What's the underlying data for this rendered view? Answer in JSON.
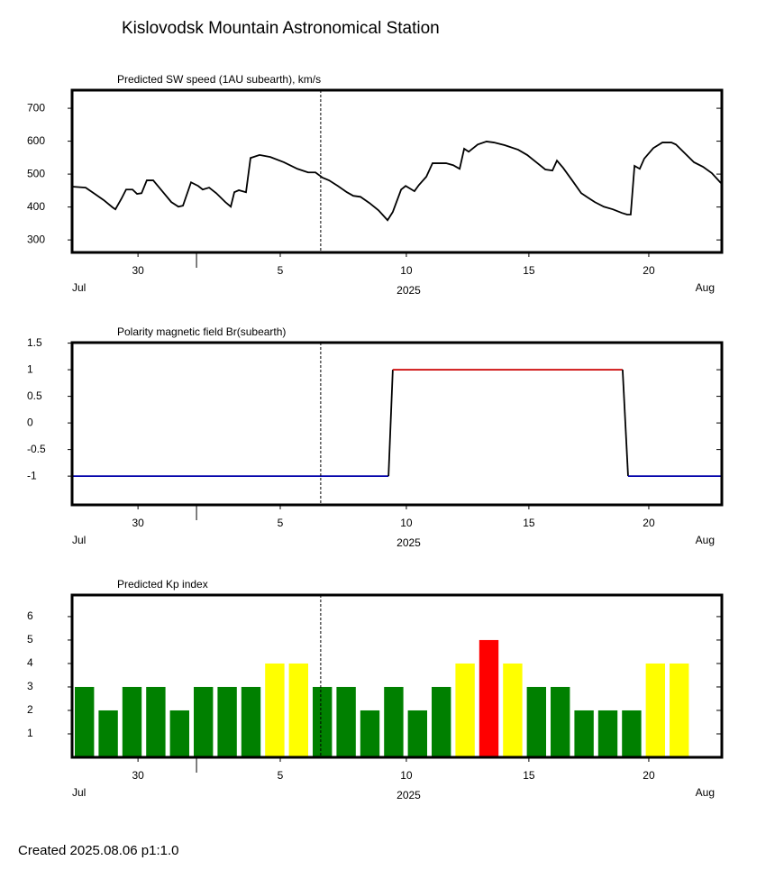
{
  "title": "Kislovodsk Mountain Astronomical Station",
  "footer": "Created  2025.08.06    p1:1.0",
  "chart_data": [
    {
      "type": "line",
      "title": "Predicted SW speed (1AU subearth), km/s",
      "x": [
        0,
        0.57,
        0.95,
        1.33,
        1.7,
        1.82,
        2.08,
        2.27,
        2.54,
        2.73,
        2.92,
        3.14,
        3.41,
        3.79,
        4.17,
        4.47,
        4.66,
        5.0,
        5.3,
        5.49,
        5.76,
        6.06,
        6.44,
        6.67,
        6.82,
        7.01,
        7.31,
        7.5,
        7.88,
        8.33,
        8.9,
        9.47,
        9.92,
        10.23,
        10.53,
        10.8,
        11.17,
        11.55,
        11.82,
        12.12,
        12.5,
        12.88,
        13.26,
        13.48,
        13.83,
        14.02,
        14.39,
        14.58,
        14.89,
        15.15,
        15.72,
        16.02,
        16.29,
        16.48,
        16.67,
        17.05,
        17.42,
        17.73,
        18.18,
        18.75,
        19.13,
        19.51,
        19.89,
        20.19,
        20.38,
        20.64,
        21.02,
        21.4,
        21.67,
        21.97,
        22.35,
        22.73,
        23.11,
        23.33,
        23.48,
        23.64,
        23.86,
        24.05,
        24.43,
        24.81,
        25.19,
        25.38,
        25.76,
        26.14,
        26.52,
        26.89,
        27.27
      ],
      "values": [
        462,
        459,
        440,
        421,
        399,
        393,
        426,
        453,
        453,
        440,
        442,
        481,
        481,
        448,
        415,
        401,
        404,
        475,
        464,
        453,
        459,
        442,
        415,
        401,
        445,
        451,
        445,
        549,
        558,
        552,
        536,
        516,
        505,
        505,
        489,
        481,
        464,
        445,
        434,
        431,
        412,
        390,
        360,
        385,
        453,
        464,
        448,
        467,
        492,
        533,
        533,
        527,
        516,
        577,
        568,
        590,
        599,
        596,
        588,
        574,
        558,
        536,
        514,
        511,
        541,
        519,
        481,
        442,
        429,
        415,
        401,
        393,
        382,
        377,
        377,
        525,
        516,
        547,
        579,
        596,
        596,
        590,
        563,
        536,
        522,
        503,
        473
      ],
      "color": "#000000",
      "xlim": [
        0,
        27.31
      ],
      "ylim": [
        262,
        755
      ],
      "yticks": [
        300,
        400,
        500,
        600,
        700
      ],
      "xticks": [
        {
          "value": 2.77,
          "label": "30"
        },
        {
          "value": 8.75,
          "label": "5"
        },
        {
          "value": 14.05,
          "label": "10"
        },
        {
          "value": 19.2,
          "label": "15"
        },
        {
          "value": 24.24,
          "label": "20"
        }
      ],
      "month_boundary": 5.23,
      "marker_x": 10.45,
      "x_start_label": "Jul",
      "x_center_label": "2025",
      "x_end_label": "Aug"
    },
    {
      "type": "polarity",
      "title": "Polarity magnetic field  Br(subearth)",
      "x": [
        0,
        13.3,
        13.48,
        23.14,
        23.37,
        27.31
      ],
      "values": [
        -1,
        -1,
        1,
        1,
        -1,
        -1
      ],
      "colors": {
        "positive": "#cc0000",
        "negative": "#0000aa",
        "transition": "#000000"
      },
      "xlim": [
        0,
        27.31
      ],
      "ylim": [
        -1.54,
        1.51
      ],
      "yticks": [
        1.5,
        1,
        0.5,
        0,
        -0.5,
        -1
      ],
      "xticks": [
        {
          "value": 2.77,
          "label": "30"
        },
        {
          "value": 8.75,
          "label": "5"
        },
        {
          "value": 14.05,
          "label": "10"
        },
        {
          "value": 19.2,
          "label": "15"
        },
        {
          "value": 24.24,
          "label": "20"
        }
      ],
      "month_boundary": 5.23,
      "marker_x": 10.45,
      "x_start_label": "Jul",
      "x_center_label": "2025",
      "x_end_label": "Aug"
    },
    {
      "type": "bar",
      "title": "Predicted Kp index",
      "x": [
        0,
        1,
        2,
        3,
        4,
        5,
        6,
        7,
        8,
        9,
        10,
        11,
        12,
        13,
        14,
        15,
        16,
        17,
        18,
        19,
        20,
        21,
        22,
        23,
        24,
        25
      ],
      "values": [
        3,
        2,
        3,
        3,
        2,
        3,
        3,
        3,
        4,
        4,
        3,
        3,
        2,
        3,
        2,
        3,
        4,
        5,
        4,
        3,
        3,
        2,
        2,
        2,
        4,
        4
      ],
      "colors": [
        "#008000",
        "#008000",
        "#008000",
        "#008000",
        "#008000",
        "#008000",
        "#008000",
        "#008000",
        "#ffff00",
        "#ffff00",
        "#008000",
        "#008000",
        "#008000",
        "#008000",
        "#008000",
        "#008000",
        "#ffff00",
        "#ff0000",
        "#ffff00",
        "#008000",
        "#008000",
        "#008000",
        "#008000",
        "#008000",
        "#ffff00",
        "#ffff00"
      ],
      "xlim": [
        0,
        27.31
      ],
      "ylim": [
        0,
        6.92
      ],
      "yticks": [
        1,
        2,
        3,
        4,
        5,
        6
      ],
      "xticks": [
        {
          "value": 2.77,
          "label": "30"
        },
        {
          "value": 8.75,
          "label": "5"
        },
        {
          "value": 14.05,
          "label": "10"
        },
        {
          "value": 19.2,
          "label": "15"
        },
        {
          "value": 24.24,
          "label": "20"
        }
      ],
      "month_boundary": 5.23,
      "marker_x": 10.45,
      "x_start_label": "Jul",
      "x_center_label": "2025",
      "x_end_label": "Aug"
    }
  ]
}
